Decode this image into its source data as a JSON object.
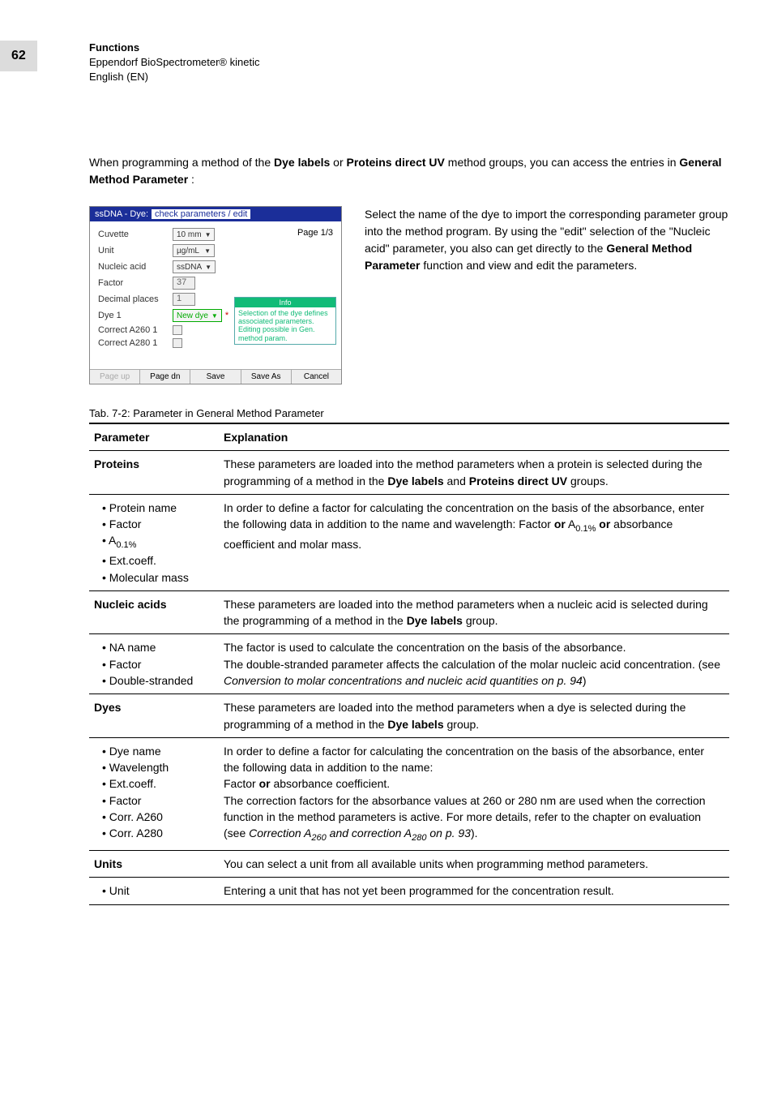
{
  "page_number": "62",
  "header": {
    "line1": "Functions",
    "line2": "Eppendorf BioSpectrometer® kinetic",
    "line3": "English (EN)"
  },
  "intro": {
    "prefix": "When programming a method of the ",
    "g1": "Dye labels",
    "mid1": " or ",
    "g2": "Proteins direct UV",
    "mid2": " method groups, you can access the entries in ",
    "g3": "General Method Parameter",
    "suffix": ":"
  },
  "screenshot": {
    "title_prefix": "ssDNA - Dye:",
    "title_sub": "check parameters / edit",
    "page": "Page 1/3",
    "rows": {
      "cuvette_lbl": "Cuvette",
      "cuvette_val": "10 mm",
      "unit_lbl": "Unit",
      "unit_val": "µg/mL",
      "na_lbl": "Nucleic acid",
      "na_val": "ssDNA",
      "factor_lbl": "Factor",
      "factor_val": "37",
      "dp_lbl": "Decimal places",
      "dp_val": "1",
      "dye_lbl": "Dye 1",
      "dye_val": "New dye",
      "c260_lbl": "Correct A260 1",
      "c280_lbl": "Correct A280 1"
    },
    "info_h": "Info",
    "info_b": "Selection of the dye defines associated parameters. Editing possible in Gen. method param.",
    "btns": {
      "pu": "Page up",
      "pd": "Page dn",
      "sv": "Save",
      "sa": "Save As",
      "cn": "Cancel"
    }
  },
  "right_text": {
    "t1": "Select the name of the dye to import the corresponding parameter group into the method program. By using the \"edit\" selection of the \"Nucleic acid\" parameter, you also can get directly to the ",
    "b1": "General Method Parameter",
    "t2": " function and view and edit the parameters."
  },
  "table_caption": "Tab. 7-2:   Parameter in General Method Parameter",
  "table": {
    "h_param": "Parameter",
    "h_expl": "Explanation",
    "proteins": {
      "label": "Proteins",
      "expl_1": "These parameters are loaded into the method parameters when a protein is selected during the programming of a method in the ",
      "expl_b1": "Dye labels",
      "expl_2": " and ",
      "expl_b2": "Proteins direct UV",
      "expl_3": " groups."
    },
    "proteins_items": {
      "i1": "Protein name",
      "i2": "Factor",
      "i3_pre": "A",
      "i3_sub": "0.1%",
      "i4": "Ext.coeff.",
      "i5": "Molecular mass",
      "expl_1": "In order to define a factor for calculating the concentration on the basis of the absorbance, enter the following data in addition to the name and wavelength: Factor ",
      "expl_b1": "or",
      "expl_2": " A",
      "expl_sub": "0.1%",
      "expl_3": " ",
      "expl_b2": "or",
      "expl_4": " absorbance coefficient and molar mass."
    },
    "na": {
      "label": "Nucleic acids",
      "expl_1": "These parameters are loaded into the method parameters when a nucleic acid is selected during the programming of a method in the ",
      "expl_b1": "Dye labels",
      "expl_2": " group."
    },
    "na_items": {
      "i1": "NA name",
      "i2": "Factor",
      "i3": "Double-stranded",
      "expl_1": "The factor is used to calculate the concentration on the basis of the absorbance.",
      "expl_2": "The double-stranded parameter affects the calculation of the molar nucleic acid concentration. (see ",
      "expl_it": "Conversion to molar concentrations and nucleic acid quantities on p. 94",
      "expl_3": ")"
    },
    "dyes": {
      "label": "Dyes",
      "expl_1": "These parameters are loaded into the method parameters when a dye is selected during the programming of a method in the ",
      "expl_b1": "Dye labels",
      "expl_2": " group."
    },
    "dyes_items": {
      "i1": "Dye name",
      "i2": "Wavelength",
      "i3": "Ext.coeff.",
      "i4": "Factor",
      "i5": "Corr. A260",
      "i6": "Corr. A280",
      "expl_1": "In order to define a factor for calculating the concentration on the basis of the absorbance, enter the following data in addition to the name:",
      "expl_2a": "Factor ",
      "expl_2b": "or",
      "expl_2c": " absorbance coefficient.",
      "expl_3": "The correction factors for the absorbance values at 260 or 280 nm are used when the correction function in the method parameters is active. For more details, refer to the chapter on evaluation (see ",
      "expl_it_pre": "Correction A",
      "expl_it_sub1": "260",
      "expl_it_mid": " and correction A",
      "expl_it_sub2": "280",
      "expl_it_post": " on p. 93",
      "expl_4": ")."
    },
    "units": {
      "label": "Units",
      "expl": "You can select a unit from all available units when programming method parameters."
    },
    "units_items": {
      "i1": "Unit",
      "expl": "Entering a unit that has not yet been programmed for the concentration result."
    }
  }
}
